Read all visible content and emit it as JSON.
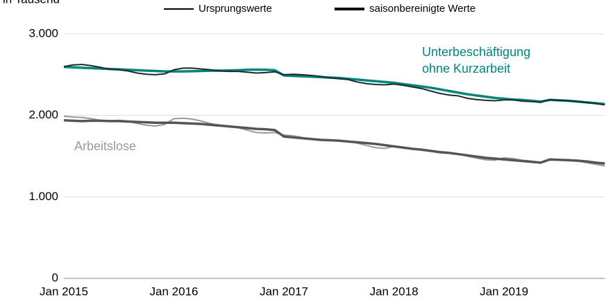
{
  "chart_data": {
    "type": "line",
    "unit_label": "in Tausend",
    "legend": [
      {
        "label": "Ursprungswerte",
        "width": 2
      },
      {
        "label": "saisonbereinigte Werte",
        "width": 4
      }
    ],
    "annotations": [
      {
        "lines": [
          "Unterbeschäftigung",
          "ohne Kurzarbeit"
        ],
        "color": "#00857c"
      },
      {
        "lines": [
          "Arbeitslose"
        ],
        "color": "#999999"
      }
    ],
    "categories": [
      "Jan 2015",
      null,
      null,
      null,
      null,
      null,
      null,
      null,
      null,
      null,
      null,
      null,
      "Jan 2016",
      null,
      null,
      null,
      null,
      null,
      null,
      null,
      null,
      null,
      null,
      null,
      "Jan 2017",
      null,
      null,
      null,
      null,
      null,
      null,
      null,
      null,
      null,
      null,
      null,
      "Jan 2018",
      null,
      null,
      null,
      null,
      null,
      null,
      null,
      null,
      null,
      null,
      null,
      "Jan 2019",
      null,
      null,
      null,
      null,
      null,
      null,
      null,
      null,
      null,
      null,
      null
    ],
    "series": [
      {
        "color": "#999999",
        "width": 2,
        "values": [
          1990,
          1980,
          1975,
          1960,
          1940,
          1935,
          1940,
          1930,
          1900,
          1880,
          1870,
          1890,
          1960,
          1965,
          1955,
          1930,
          1900,
          1880,
          1860,
          1850,
          1820,
          1790,
          1785,
          1790,
          1760,
          1750,
          1730,
          1710,
          1700,
          1690,
          1685,
          1680,
          1660,
          1630,
          1605,
          1595,
          1620,
          1610,
          1590,
          1580,
          1560,
          1540,
          1535,
          1530,
          1500,
          1475,
          1455,
          1450,
          1480,
          1470,
          1450,
          1440,
          1425,
          1450,
          1455,
          1460,
          1440,
          1420,
          1400,
          1380
        ]
      },
      {
        "color": "#555555",
        "width": 3.5,
        "values": [
          1940,
          1935,
          1930,
          1935,
          1935,
          1930,
          1930,
          1925,
          1920,
          1915,
          1910,
          1910,
          1910,
          1905,
          1900,
          1895,
          1885,
          1875,
          1865,
          1855,
          1845,
          1835,
          1830,
          1820,
          1740,
          1730,
          1720,
          1710,
          1700,
          1695,
          1690,
          1680,
          1670,
          1660,
          1650,
          1635,
          1620,
          1605,
          1590,
          1580,
          1565,
          1550,
          1540,
          1525,
          1510,
          1495,
          1480,
          1470,
          1460,
          1450,
          1440,
          1430,
          1420,
          1460,
          1455,
          1450,
          1445,
          1435,
          1420,
          1410
        ]
      },
      {
        "color": "#00857c",
        "width": 3.5,
        "values": [
          2595,
          2590,
          2585,
          2580,
          2575,
          2570,
          2565,
          2560,
          2555,
          2550,
          2545,
          2540,
          2540,
          2540,
          2542,
          2545,
          2548,
          2550,
          2552,
          2555,
          2560,
          2562,
          2560,
          2555,
          2490,
          2485,
          2480,
          2475,
          2470,
          2465,
          2460,
          2450,
          2440,
          2430,
          2420,
          2410,
          2400,
          2385,
          2370,
          2355,
          2340,
          2320,
          2300,
          2280,
          2260,
          2245,
          2230,
          2215,
          2205,
          2195,
          2190,
          2180,
          2170,
          2190,
          2185,
          2180,
          2170,
          2160,
          2150,
          2140
        ]
      },
      {
        "color": "#1a2a2a",
        "width": 2,
        "values": [
          2600,
          2620,
          2625,
          2610,
          2590,
          2565,
          2560,
          2545,
          2520,
          2505,
          2500,
          2510,
          2560,
          2580,
          2580,
          2570,
          2560,
          2545,
          2540,
          2540,
          2530,
          2520,
          2525,
          2535,
          2500,
          2505,
          2500,
          2490,
          2480,
          2460,
          2450,
          2440,
          2410,
          2390,
          2380,
          2375,
          2385,
          2370,
          2350,
          2330,
          2300,
          2270,
          2250,
          2240,
          2210,
          2195,
          2185,
          2180,
          2190,
          2190,
          2175,
          2170,
          2160,
          2195,
          2185,
          2180,
          2170,
          2160,
          2145,
          2130
        ]
      }
    ],
    "ylim": [
      0,
      3000
    ],
    "yticks": [
      0,
      {
        "value": 1000,
        "label": "1.000"
      },
      {
        "value": 2000,
        "label": "2.000"
      },
      {
        "value": 3000,
        "label": "3.000"
      }
    ],
    "grid": true
  }
}
